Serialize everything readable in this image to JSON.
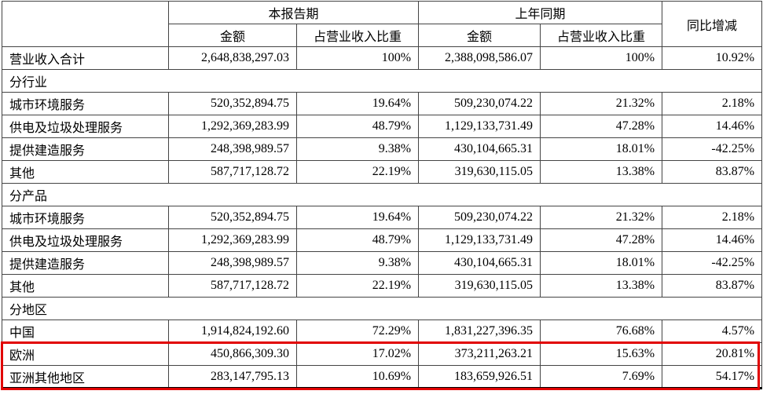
{
  "table": {
    "header": {
      "corner": "",
      "group_current": "本报告期",
      "group_prior": "上年同期",
      "yoy": "同比增减",
      "amount_current": "金额",
      "pct_current": "占营业收入比重",
      "amount_prior": "金额",
      "pct_prior": "占营业收入比重"
    },
    "highlight_color": "#e10000",
    "rows": [
      {
        "type": "data",
        "label": "营业收入合计",
        "cur_amount": "2,648,838,297.03",
        "cur_pct": "100%",
        "prior_amount": "2,388,098,586.07",
        "prior_pct": "100%",
        "yoy": "10.92%"
      },
      {
        "type": "section",
        "label": "分行业"
      },
      {
        "type": "data",
        "label": "城市环境服务",
        "cur_amount": "520,352,894.75",
        "cur_pct": "19.64%",
        "prior_amount": "509,230,074.22",
        "prior_pct": "21.32%",
        "yoy": "2.18%"
      },
      {
        "type": "data",
        "label": "供电及垃圾处理服务",
        "cur_amount": "1,292,369,283.99",
        "cur_pct": "48.79%",
        "prior_amount": "1,129,133,731.49",
        "prior_pct": "47.28%",
        "yoy": "14.46%"
      },
      {
        "type": "data",
        "label": "提供建造服务",
        "cur_amount": "248,398,989.57",
        "cur_pct": "9.38%",
        "prior_amount": "430,104,665.31",
        "prior_pct": "18.01%",
        "yoy": "-42.25%"
      },
      {
        "type": "data",
        "label": "其他",
        "cur_amount": "587,717,128.72",
        "cur_pct": "22.19%",
        "prior_amount": "319,630,115.05",
        "prior_pct": "13.38%",
        "yoy": "83.87%"
      },
      {
        "type": "section",
        "label": "分产品"
      },
      {
        "type": "data",
        "label": "城市环境服务",
        "cur_amount": "520,352,894.75",
        "cur_pct": "19.64%",
        "prior_amount": "509,230,074.22",
        "prior_pct": "21.32%",
        "yoy": "2.18%"
      },
      {
        "type": "data",
        "label": "供电及垃圾处理服务",
        "cur_amount": "1,292,369,283.99",
        "cur_pct": "48.79%",
        "prior_amount": "1,129,133,731.49",
        "prior_pct": "47.28%",
        "yoy": "14.46%"
      },
      {
        "type": "data",
        "label": "提供建造服务",
        "cur_amount": "248,398,989.57",
        "cur_pct": "9.38%",
        "prior_amount": "430,104,665.31",
        "prior_pct": "18.01%",
        "yoy": "-42.25%"
      },
      {
        "type": "data",
        "label": "其他",
        "cur_amount": "587,717,128.72",
        "cur_pct": "22.19%",
        "prior_amount": "319,630,115.05",
        "prior_pct": "13.38%",
        "yoy": "83.87%"
      },
      {
        "type": "section",
        "label": "分地区"
      },
      {
        "type": "data",
        "label": "中国",
        "cur_amount": "1,914,824,192.60",
        "cur_pct": "72.29%",
        "prior_amount": "1,831,227,396.35",
        "prior_pct": "76.68%",
        "yoy": "4.57%"
      },
      {
        "type": "data",
        "label": "欧洲",
        "cur_amount": "450,866,309.30",
        "cur_pct": "17.02%",
        "prior_amount": "373,211,263.21",
        "prior_pct": "15.63%",
        "yoy": "20.81%",
        "highlight": true
      },
      {
        "type": "data",
        "label": "亚洲其他地区",
        "cur_amount": "283,147,795.13",
        "cur_pct": "10.69%",
        "prior_amount": "183,659,926.51",
        "prior_pct": "7.69%",
        "yoy": "54.17%",
        "highlight": true
      }
    ]
  }
}
